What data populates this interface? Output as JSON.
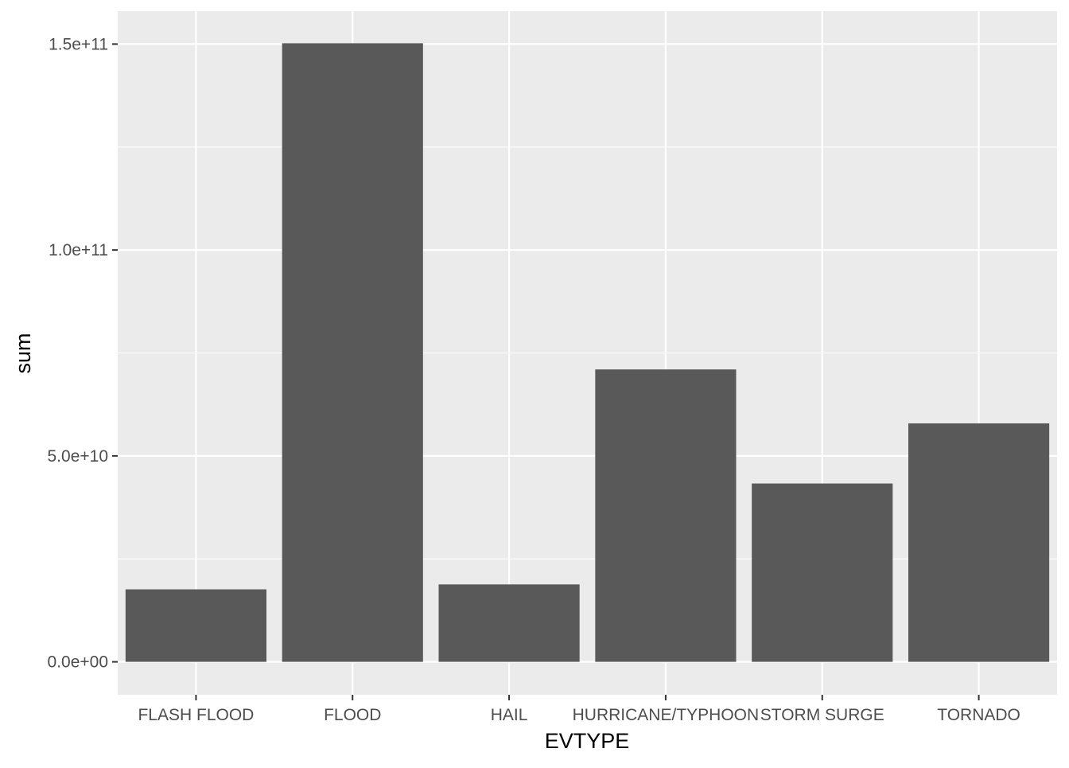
{
  "colors": {
    "panel_background": "#EBEBEB",
    "major_grid": "#FFFFFF",
    "bar_fill": "#595959",
    "tick_text": "#4D4D4D",
    "title_text": "#000000"
  },
  "chart_data": {
    "type": "bar",
    "xlabel": "EVTYPE",
    "ylabel": "sum",
    "categories": [
      "FLASH FLOOD",
      "FLOOD",
      "HAIL",
      "HURRICANE/TYPHOON",
      "STORM SURGE",
      "TORNADO"
    ],
    "values": [
      17600000000,
      150200000000,
      18800000000,
      71000000000,
      43300000000,
      57900000000
    ],
    "ylim": [
      -8000000000,
      158000000000
    ],
    "y_ticks": [
      0,
      50000000000,
      100000000000,
      150000000000
    ],
    "y_tick_labels": [
      "0.0e+00",
      "5.0e+10",
      "1.0e+11",
      "1.5e+11"
    ],
    "grid": true,
    "legend": "none"
  }
}
